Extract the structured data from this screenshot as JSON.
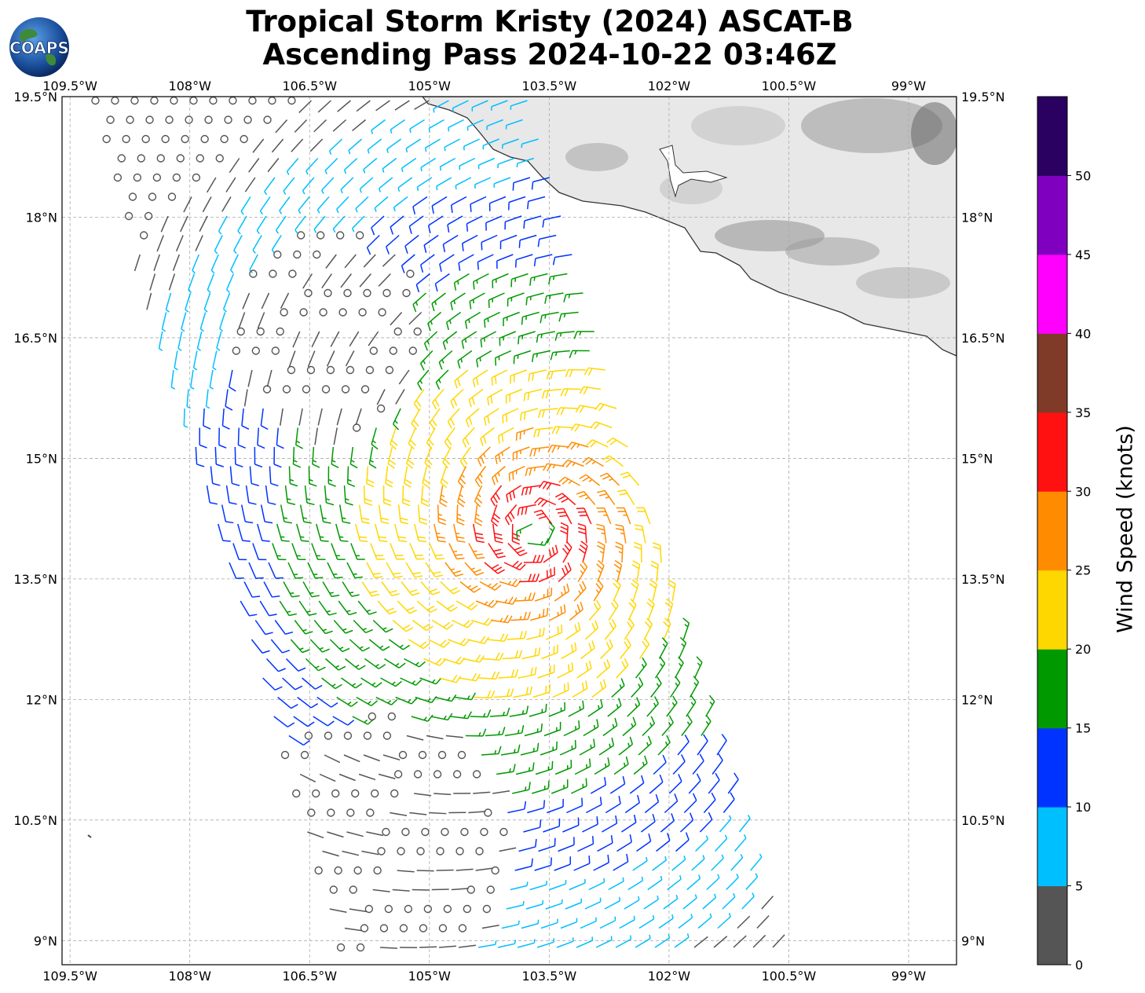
{
  "title": {
    "line1": "Tropical Storm Kristy (2024) ASCAT-B",
    "line2": "Ascending Pass 2024-10-22 03:46Z"
  },
  "logo_text": "COAPS",
  "map": {
    "lon_range": [
      -109.6,
      -98.4
    ],
    "lat_range": [
      8.7,
      19.5
    ],
    "lon_ticks": [
      "109.5°W",
      "108°W",
      "106.5°W",
      "105°W",
      "103.5°W",
      "102°W",
      "100.5°W",
      "99°W"
    ],
    "lat_ticks": [
      "19.5°N",
      "18°N",
      "16.5°N",
      "15°N",
      "13.5°N",
      "12°N",
      "10.5°N",
      "9°N"
    ],
    "storm_center": {
      "lon": -103.7,
      "lat": 14.1
    },
    "gridlines": true,
    "coastline_color": "#333333",
    "land_shading": "grayscale topography"
  },
  "colorbar": {
    "label": "Wind Speed (knots)",
    "ticks": [
      "0",
      "5",
      "10",
      "15",
      "20",
      "25",
      "30",
      "35",
      "40",
      "45",
      "50"
    ],
    "colors": [
      "#555555",
      "#00bfff",
      "#0033ff",
      "#009900",
      "#ffd700",
      "#ff8c00",
      "#ff1111",
      "#7f3a28",
      "#ff00ff",
      "#8000bf",
      "#2a0060"
    ]
  }
}
